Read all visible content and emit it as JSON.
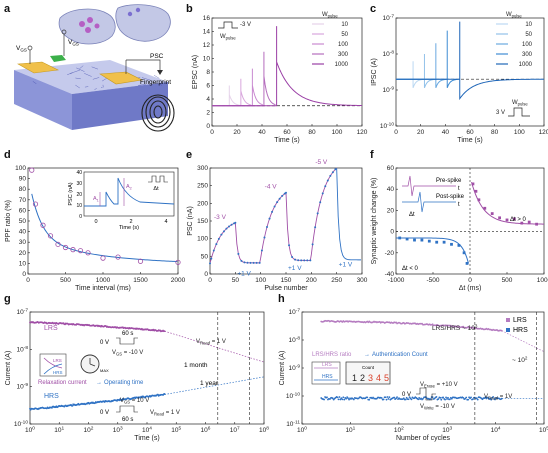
{
  "figure": {
    "panel_letters": [
      "a",
      "b",
      "c",
      "d",
      "e",
      "f",
      "g",
      "h"
    ]
  },
  "schematic": {
    "labels": {
      "vgs": "V",
      "vgs_sub": "GS",
      "psc": "PSC",
      "fingerprint": "Fingerprint"
    }
  },
  "chart_data": [
    {
      "panel": "b",
      "type": "line",
      "xlabel": "Time (s)",
      "ylabel": "EPSC (nA)",
      "xlim": [
        0,
        130
      ],
      "ylim": [
        0,
        16
      ],
      "xticks": [
        "0",
        "20",
        "40",
        "60",
        "80",
        "100",
        "120"
      ],
      "yticks": [
        "0",
        "2",
        "4",
        "6",
        "8",
        "10",
        "12",
        "14",
        "16"
      ],
      "baseline": 3.0,
      "legend_title": "W",
      "legend_title_sub": "pulse",
      "pulse_label": "-3 V",
      "pulse_width_label": "W",
      "pulse_width_sub": "pulse",
      "series": [
        {
          "name": "10",
          "color": "#e6d3ea",
          "t": 15,
          "peak": 6.0
        },
        {
          "name": "50",
          "color": "#d9a7dd",
          "t": 25,
          "peak": 7.0
        },
        {
          "name": "100",
          "color": "#c98ad0",
          "t": 35,
          "peak": 8.5
        },
        {
          "name": "300",
          "color": "#b56dbd",
          "t": 45,
          "peak": 11.0
        },
        {
          "name": "1000",
          "color": "#9a3fa5",
          "t": 56,
          "peak": 14.8
        }
      ]
    },
    {
      "panel": "c",
      "type": "line",
      "xlabel": "Time (s)",
      "ylabel": "IPSC (A)",
      "xlim": [
        0,
        130
      ],
      "ylog": true,
      "ylim_exp": [
        -10,
        -7
      ],
      "xticks": [
        "0",
        "20",
        "40",
        "60",
        "80",
        "100",
        "120"
      ],
      "yticks": [
        "10-10",
        "10-9",
        "10-8",
        "10-7"
      ],
      "baseline_exp": -8.7,
      "legend_title": "W",
      "legend_title_sub": "pulse",
      "pulse_label": "3 V",
      "pulse_width_label": "W",
      "pulse_width_sub": "pulse",
      "series": [
        {
          "name": "10",
          "color": "#bcd9f2",
          "t": 15,
          "dip_exp": -8.2
        },
        {
          "name": "50",
          "color": "#93c2ea",
          "t": 25,
          "dip_exp": -8.0
        },
        {
          "name": "100",
          "color": "#6aa9e0",
          "t": 35,
          "dip_exp": -7.7
        },
        {
          "name": "300",
          "color": "#3f8cd3",
          "t": 45,
          "dip_exp": -7.35
        },
        {
          "name": "1000",
          "color": "#1f66b8",
          "t": 56,
          "dip_exp": -7.1
        }
      ]
    },
    {
      "panel": "d",
      "type": "scatter",
      "xlabel": "Time interval (ms)",
      "ylabel": "PPF ratio (%)",
      "xlim": [
        0,
        2000
      ],
      "ylim": [
        0,
        100
      ],
      "xticks": [
        "0",
        "500",
        "1000",
        "1500",
        "2000"
      ],
      "yticks": [
        "0",
        "10",
        "20",
        "30",
        "40",
        "50",
        "60",
        "70",
        "80",
        "90",
        "100"
      ],
      "x": [
        50,
        100,
        200,
        300,
        400,
        500,
        600,
        700,
        800,
        1000,
        1200,
        1500,
        2000
      ],
      "y": [
        98,
        66,
        46,
        36,
        28,
        25,
        23,
        22,
        20,
        15,
        16,
        12,
        11
      ],
      "inset": {
        "xlabel": "Time (s)",
        "ylabel": "PSC (nA)",
        "xticks": [
          "0",
          "2",
          "4"
        ],
        "yticks": [
          "0",
          "10",
          "20",
          "30",
          "40"
        ],
        "a1": "A",
        "a1_sub": "1",
        "a2": "A",
        "a2_sub": "2",
        "dt": "Δt"
      }
    },
    {
      "panel": "e",
      "type": "line",
      "xlabel": "Pulse number",
      "ylabel": "PSC (nA)",
      "xlim": [
        0,
        300
      ],
      "ylim": [
        0,
        300
      ],
      "xticks": [
        "0",
        "50",
        "100",
        "150",
        "200",
        "250",
        "300"
      ],
      "yticks": [
        "0",
        "50",
        "100",
        "150",
        "200",
        "250",
        "300"
      ],
      "segments": [
        {
          "label": "-3 V",
          "start": 0,
          "end": 50,
          "base": 30,
          "top": 145
        },
        {
          "label": "-4 V",
          "start": 100,
          "end": 150,
          "base": 45,
          "top": 230
        },
        {
          "label": "-5 V",
          "start": 200,
          "end": 250,
          "base": 55,
          "top": 300
        }
      ],
      "depress_label": "+1 V"
    },
    {
      "panel": "f",
      "type": "scatter",
      "xlabel": "Δt (ms)",
      "ylabel": "Synaptic weight change (%)",
      "xlim": [
        -1000,
        1000
      ],
      "ylim": [
        -40,
        60
      ],
      "xticks": [
        "-1000",
        "-500",
        "0",
        "500",
        "1000"
      ],
      "yticks": [
        "-40",
        "-20",
        "0",
        "20",
        "40",
        "60"
      ],
      "pos_x": [
        40,
        80,
        120,
        200,
        300,
        400,
        500,
        600,
        700,
        800,
        900
      ],
      "pos_y": [
        45,
        38,
        30,
        22,
        17,
        13,
        11,
        12,
        8,
        9,
        7
      ],
      "neg_x": [
        -950,
        -850,
        -750,
        -650,
        -550,
        -450,
        -350,
        -250,
        -150,
        -80,
        -40
      ],
      "neg_y": [
        -6,
        -7,
        -8,
        -8,
        -9,
        -10,
        -10,
        -12,
        -13,
        -20,
        -30
      ],
      "labels": {
        "pre": "Pre-spike",
        "post": "Post-spike",
        "dt": "Δt",
        "t": "t",
        "dt_pos": "Δt > 0",
        "dt_neg": "Δt < 0"
      }
    },
    {
      "panel": "g",
      "type": "line",
      "xlabel": "Time (s)",
      "ylabel": "Current (A)",
      "xlog": true,
      "xlim_exp": [
        0,
        8
      ],
      "ylog": true,
      "ylim_exp": [
        -10.5,
        -6.7
      ],
      "xticks": [
        "100",
        "101",
        "102",
        "103",
        "104",
        "105",
        "106",
        "107",
        "108"
      ],
      "yticks": [
        "10-10",
        "10-9",
        "10-8",
        "10-7"
      ],
      "series": [
        {
          "name": "LRS",
          "color": "#a04fa6",
          "y0_exp": -7.05,
          "y_end_exp": -7.35,
          "proj_exp": -8.4
        },
        {
          "name": "HRS",
          "color": "#2f72c4",
          "y0_exp": -10.0,
          "y_end_exp": -9.5,
          "proj_exp": -8.9
        }
      ],
      "labels": {
        "lrs_pulse": "60 s",
        "lrs_v0": "0 V",
        "lrs_vgs": "V",
        "lrs_vgs_sub": "GS",
        "lrs_vgs_val": "= -10 V",
        "lrs_vread": "V",
        "lrs_vread_sub": "Read",
        "lrs_vread_val": "= 1 V",
        "hrs_v10": "V",
        "hrs_v10_sub": "GS",
        "hrs_v10_val": "= 10 V",
        "hrs_vread": "V",
        "hrs_vread_sub": "Read",
        "hrs_vread_val": "= 1 V",
        "hrs_v0": "0 V",
        "hrs_pulse": "60 s",
        "year": "1 year",
        "month": "1 month",
        "relax": "Relaxation current",
        "arrow": "→",
        "optime": "Operating time",
        "ret_lrs": "LRS",
        "ret_hrs": "HRS",
        "max": "MAX"
      }
    },
    {
      "panel": "h",
      "type": "scatter",
      "xlabel": "Number of cycles",
      "ylabel": "Current (A)",
      "xlog": true,
      "xlim_exp": [
        -0.5,
        5.8
      ],
      "ylog": true,
      "ylim_exp": [
        -11.5,
        -6.7
      ],
      "xticks": [
        "100",
        "101",
        "102",
        "103",
        "104",
        "105"
      ],
      "yticks": [
        "10-11",
        "10-10",
        "10-9",
        "10-8",
        "10-7"
      ],
      "series": [
        {
          "name": "LRS",
          "color": "#b57cc0"
        },
        {
          "name": "HRS",
          "color": "#2f72c4"
        }
      ],
      "labels": {
        "ratio1": "LRS/HRS ~ 10",
        "ratio1_exp": "3",
        "ratio2": "~ 10",
        "ratio2_exp": "2",
        "ratio_title": "LRS/HRS ratio",
        "arrow": "→",
        "auth": "Authentication Count",
        "count_label": "Count",
        "count_digits": "12345",
        "lrs": "LRS",
        "hrs": "HRS",
        "verase": "V",
        "verase_sub": "Erase",
        "verase_val": "= +10 V",
        "vwrite": "V",
        "vwrite_sub": "Write",
        "vwrite_val": "= -10 V",
        "v0": "0 V",
        "vread": "V",
        "vread_sub": "Read",
        "vread_val": "= 1V"
      }
    }
  ]
}
